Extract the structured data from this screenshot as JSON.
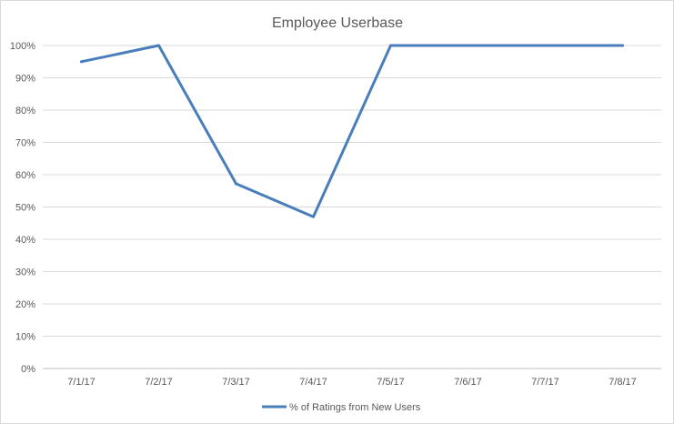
{
  "chart_data": {
    "type": "line",
    "title": "Employee Userbase",
    "categories": [
      "7/1/17",
      "7/2/17",
      "7/3/17",
      "7/4/17",
      "7/5/17",
      "7/6/17",
      "7/7/17",
      "7/8/17"
    ],
    "series": [
      {
        "name": "% of Ratings from New Users",
        "values": [
          0.95,
          1.0,
          0.572,
          0.47,
          1.0,
          1.0,
          1.0,
          1.0
        ],
        "color": "#4a7ebb"
      }
    ],
    "ylim": [
      0,
      1
    ],
    "yticks": [
      "0%",
      "10%",
      "20%",
      "30%",
      "40%",
      "50%",
      "60%",
      "70%",
      "80%",
      "90%",
      "100%"
    ],
    "grid": true,
    "legend_position": "bottom"
  }
}
